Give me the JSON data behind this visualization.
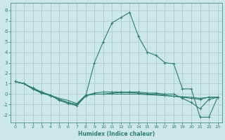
{
  "xlabel": "Humidex (Indice chaleur)",
  "bg_color": "#cce8e8",
  "line_color": "#2e7d6e",
  "grid_color": "#b0d0d0",
  "xlim": [
    -0.5,
    23.5
  ],
  "ylim": [
    -2.7,
    8.7
  ],
  "xticks": [
    0,
    1,
    2,
    3,
    4,
    5,
    6,
    7,
    8,
    9,
    10,
    11,
    12,
    13,
    14,
    15,
    16,
    17,
    18,
    19,
    20,
    21,
    22,
    23
  ],
  "yticks": [
    -2,
    -1,
    0,
    1,
    2,
    3,
    4,
    5,
    6,
    7,
    8
  ],
  "lines": [
    {
      "x": [
        0,
        1,
        2,
        3,
        4,
        5,
        6,
        7,
        8,
        9,
        10,
        11,
        12,
        13,
        14,
        15,
        16,
        17,
        18,
        19,
        20,
        21,
        22,
        23
      ],
      "y": [
        1.2,
        1.0,
        0.6,
        0.2,
        -0.1,
        -0.6,
        -0.9,
        -1.1,
        -0.2,
        3.0,
        5.0,
        6.8,
        7.3,
        7.8,
        5.5,
        4.0,
        3.7,
        3.0,
        2.9,
        0.5,
        0.5,
        -2.2,
        -2.2,
        -0.3
      ],
      "marker": true
    },
    {
      "x": [
        0,
        1,
        2,
        3,
        4,
        5,
        6,
        7,
        8,
        9,
        10,
        11,
        12,
        13,
        14,
        15,
        16,
        17,
        18,
        19,
        20,
        21,
        22,
        23
      ],
      "y": [
        1.2,
        1.0,
        0.5,
        0.2,
        -0.15,
        -0.5,
        -0.8,
        -1.0,
        -0.15,
        0.1,
        0.2,
        0.2,
        0.2,
        0.2,
        0.2,
        0.1,
        0.1,
        0.0,
        0.0,
        -0.4,
        -0.8,
        -1.4,
        -0.5,
        -0.3
      ],
      "marker": true
    },
    {
      "x": [
        0,
        1,
        2,
        3,
        4,
        5,
        6,
        7,
        8,
        9,
        10,
        11,
        12,
        13,
        14,
        15,
        16,
        17,
        18,
        19,
        20,
        21,
        22,
        23
      ],
      "y": [
        1.2,
        1.0,
        0.5,
        0.1,
        -0.15,
        -0.5,
        -0.8,
        -1.0,
        -0.15,
        0.0,
        0.0,
        0.1,
        0.15,
        0.15,
        0.1,
        0.0,
        0.0,
        -0.1,
        -0.2,
        -0.3,
        -0.4,
        -0.5,
        -0.3,
        -0.3
      ],
      "marker": true
    },
    {
      "x": [
        0,
        1,
        2,
        3,
        4,
        5,
        6,
        7,
        8,
        9,
        10,
        11,
        12,
        13,
        14,
        15,
        16,
        17,
        18,
        19,
        20,
        21,
        22,
        23
      ],
      "y": [
        1.2,
        1.0,
        0.5,
        0.1,
        -0.1,
        -0.4,
        -0.6,
        -0.9,
        -0.1,
        0.0,
        0.0,
        0.0,
        0.0,
        0.0,
        0.0,
        -0.05,
        -0.1,
        -0.15,
        -0.2,
        -0.25,
        -0.3,
        -0.4,
        -0.3,
        -0.3
      ],
      "marker": false
    }
  ]
}
